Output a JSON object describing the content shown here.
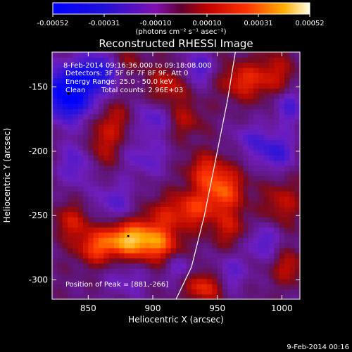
{
  "chart_data": {
    "type": "heatmap",
    "title": "Reconstructed RHESSI Image",
    "xlabel": "Heliocentric X (arcsec)",
    "ylabel": "Heliocentric Y (arcsec)",
    "xlim": [
      822,
      1014
    ],
    "ylim": [
      -315,
      -123
    ],
    "xticks": [
      850,
      900,
      950,
      1000
    ],
    "yticks": [
      -150,
      -200,
      -250,
      -300
    ],
    "colorbar": {
      "min": -0.00052,
      "max": 0.00052,
      "ticks": [
        "-0.00052",
        "-0.00031",
        "-0.00010",
        "0.00010",
        "0.00031",
        "0.00052"
      ],
      "units": "(photons cm⁻² s⁻¹ asec⁻²)"
    },
    "annotations": {
      "time_range": "8-Feb-2014 09:16:36.000 to 09:18:08.000",
      "detectors": "Detectors: 3F 5F 6F 7F 8F 9F, Att 0",
      "energy": "Energy Range: 25.0 - 50.0 keV",
      "clean": "Clean",
      "counts": "Total counts: 2.96E+03",
      "peak": "Position of Peak = [881,-266]"
    },
    "peak_position": [
      881,
      -266
    ],
    "grid": false,
    "limb_curve": [
      [
        918,
        -315
      ],
      [
        930,
        -290
      ],
      [
        940,
        -250
      ],
      [
        950,
        -200
      ],
      [
        958,
        -160
      ],
      [
        964,
        -123
      ]
    ],
    "blobs": [
      {
        "x": 835,
        "y": -155,
        "sx": 14,
        "sy": 14,
        "a": -0.00052
      },
      {
        "x": 858,
        "y": -138,
        "sx": 12,
        "sy": 10,
        "a": -0.0003
      },
      {
        "x": 880,
        "y": -130,
        "sx": 10,
        "sy": 8,
        "a": 0.00012
      },
      {
        "x": 912,
        "y": -148,
        "sx": 10,
        "sy": 10,
        "a": 0.0002
      },
      {
        "x": 935,
        "y": -135,
        "sx": 9,
        "sy": 9,
        "a": -0.0002
      },
      {
        "x": 970,
        "y": -145,
        "sx": 12,
        "sy": 10,
        "a": 0.00025
      },
      {
        "x": 995,
        "y": -140,
        "sx": 10,
        "sy": 12,
        "a": 0.00018
      },
      {
        "x": 1005,
        "y": -165,
        "sx": 8,
        "sy": 10,
        "a": -0.0002
      },
      {
        "x": 870,
        "y": -175,
        "sx": 10,
        "sy": 10,
        "a": 0.00015
      },
      {
        "x": 862,
        "y": -195,
        "sx": 8,
        "sy": 12,
        "a": 0.00018
      },
      {
        "x": 900,
        "y": -175,
        "sx": 10,
        "sy": 9,
        "a": -0.00018
      },
      {
        "x": 925,
        "y": -175,
        "sx": 10,
        "sy": 10,
        "a": 0.00015
      },
      {
        "x": 975,
        "y": -190,
        "sx": 9,
        "sy": 9,
        "a": -0.00015
      },
      {
        "x": 995,
        "y": -200,
        "sx": 10,
        "sy": 10,
        "a": -0.00025
      },
      {
        "x": 840,
        "y": -210,
        "sx": 9,
        "sy": 12,
        "a": -0.00018
      },
      {
        "x": 895,
        "y": -205,
        "sx": 12,
        "sy": 10,
        "a": -0.00015
      },
      {
        "x": 940,
        "y": -215,
        "sx": 10,
        "sy": 10,
        "a": 0.00022
      },
      {
        "x": 955,
        "y": -230,
        "sx": 11,
        "sy": 12,
        "a": 0.00032
      },
      {
        "x": 930,
        "y": -245,
        "sx": 12,
        "sy": 10,
        "a": 0.00028
      },
      {
        "x": 960,
        "y": -260,
        "sx": 10,
        "sy": 10,
        "a": 0.00018
      },
      {
        "x": 870,
        "y": -240,
        "sx": 12,
        "sy": 12,
        "a": -0.00016
      },
      {
        "x": 905,
        "y": -250,
        "sx": 10,
        "sy": 10,
        "a": 0.00014
      },
      {
        "x": 838,
        "y": -255,
        "sx": 10,
        "sy": 10,
        "a": 0.0002
      },
      {
        "x": 880,
        "y": -268,
        "sx": 14,
        "sy": 10,
        "a": 0.00045
      },
      {
        "x": 905,
        "y": -272,
        "sx": 12,
        "sy": 10,
        "a": 0.0003
      },
      {
        "x": 855,
        "y": -275,
        "sx": 10,
        "sy": 9,
        "a": 0.00025
      },
      {
        "x": 1000,
        "y": -240,
        "sx": 10,
        "sy": 12,
        "a": 0.00018
      },
      {
        "x": 985,
        "y": -270,
        "sx": 10,
        "sy": 10,
        "a": -0.00018
      },
      {
        "x": 1005,
        "y": -290,
        "sx": 9,
        "sy": 9,
        "a": 0.00018
      },
      {
        "x": 960,
        "y": -295,
        "sx": 10,
        "sy": 10,
        "a": -0.00015
      },
      {
        "x": 940,
        "y": -305,
        "sx": 10,
        "sy": 8,
        "a": 0.00028
      },
      {
        "x": 880,
        "y": -300,
        "sx": 12,
        "sy": 10,
        "a": -0.00012
      },
      {
        "x": 920,
        "y": -290,
        "sx": 8,
        "sy": 8,
        "a": -0.00014
      }
    ]
  },
  "footer": {
    "date": "9-Feb-2014 00:16"
  }
}
